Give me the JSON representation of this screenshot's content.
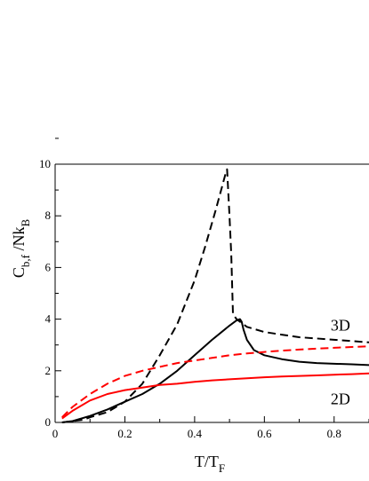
{
  "chart_data": {
    "type": "line",
    "xlabel": {
      "main": "T/T",
      "sub": "F"
    },
    "ylabel": {
      "main": "C",
      "sub": "b,f",
      "mid": " /Nk",
      "sub2": "B"
    },
    "xlim": [
      0,
      0.9
    ],
    "ylim": [
      0,
      10
    ],
    "xticks": [
      0,
      0.2,
      0.4,
      0.6,
      0.8
    ],
    "xtick_labels": [
      "0",
      "0.2",
      "0.4",
      "0.6",
      "0.8"
    ],
    "yticks": [
      0,
      2,
      4,
      6,
      8,
      10
    ],
    "ytick_labels": [
      "0",
      "2",
      "4",
      "6",
      "8",
      "10"
    ],
    "grid": false,
    "annotations": [
      {
        "text": "3D",
        "x": 0.79,
        "y": 3.55
      },
      {
        "text": "2D",
        "x": 0.79,
        "y": 0.7
      }
    ],
    "series": [
      {
        "color": "#000000",
        "dash": "dashed",
        "x": [
          0.02,
          0.05,
          0.08,
          0.1,
          0.15,
          0.2,
          0.25,
          0.3,
          0.35,
          0.4,
          0.43,
          0.46,
          0.48,
          0.49,
          0.493,
          0.5,
          0.505,
          0.51,
          0.52,
          0.55,
          0.6,
          0.65,
          0.7,
          0.75,
          0.8,
          0.85,
          0.9
        ],
        "y": [
          0.0,
          0.05,
          0.1,
          0.2,
          0.4,
          0.8,
          1.5,
          2.6,
          3.8,
          5.5,
          6.8,
          8.2,
          9.2,
          9.7,
          9.8,
          8.0,
          6.5,
          4.2,
          4.0,
          3.7,
          3.5,
          3.4,
          3.3,
          3.25,
          3.2,
          3.15,
          3.1
        ]
      },
      {
        "color": "#000000",
        "dash": "solid",
        "x": [
          0.02,
          0.05,
          0.1,
          0.15,
          0.2,
          0.25,
          0.3,
          0.35,
          0.4,
          0.45,
          0.5,
          0.52,
          0.53,
          0.535,
          0.54,
          0.55,
          0.57,
          0.6,
          0.65,
          0.7,
          0.75,
          0.8,
          0.85,
          0.9
        ],
        "y": [
          0.0,
          0.05,
          0.25,
          0.5,
          0.8,
          1.1,
          1.5,
          2.0,
          2.6,
          3.2,
          3.75,
          3.95,
          4.0,
          3.9,
          3.6,
          3.2,
          2.8,
          2.6,
          2.45,
          2.35,
          2.3,
          2.27,
          2.25,
          2.22
        ]
      },
      {
        "color": "#ff0000",
        "dash": "dashed",
        "x": [
          0.02,
          0.05,
          0.1,
          0.15,
          0.2,
          0.25,
          0.3,
          0.35,
          0.4,
          0.45,
          0.5,
          0.55,
          0.6,
          0.65,
          0.7,
          0.75,
          0.8,
          0.85,
          0.9
        ],
        "y": [
          0.2,
          0.6,
          1.1,
          1.5,
          1.8,
          2.0,
          2.15,
          2.3,
          2.4,
          2.5,
          2.6,
          2.67,
          2.73,
          2.78,
          2.82,
          2.86,
          2.89,
          2.92,
          2.95
        ]
      },
      {
        "color": "#ff0000",
        "dash": "solid",
        "x": [
          0.02,
          0.05,
          0.1,
          0.15,
          0.2,
          0.25,
          0.3,
          0.35,
          0.4,
          0.45,
          0.5,
          0.55,
          0.6,
          0.65,
          0.7,
          0.75,
          0.8,
          0.85,
          0.9
        ],
        "y": [
          0.15,
          0.45,
          0.85,
          1.1,
          1.25,
          1.35,
          1.45,
          1.5,
          1.57,
          1.63,
          1.67,
          1.71,
          1.75,
          1.78,
          1.8,
          1.82,
          1.85,
          1.87,
          1.9
        ]
      }
    ]
  }
}
